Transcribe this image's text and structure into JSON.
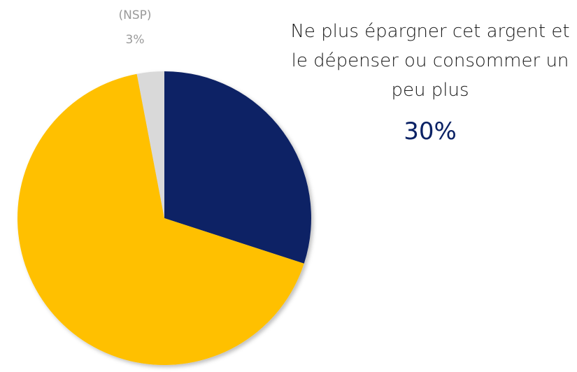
{
  "chart_data": {
    "type": "pie",
    "categories": [
      "Ne plus épargner cet argent et le dépenser ou consommer un peu plus",
      null,
      "(NSP)"
    ],
    "values": [
      30,
      67,
      3
    ],
    "value_labels": [
      "30%",
      null,
      "3%"
    ],
    "colors": [
      "#0b2265",
      "#ffc000",
      "#d9d9d9"
    ]
  }
}
